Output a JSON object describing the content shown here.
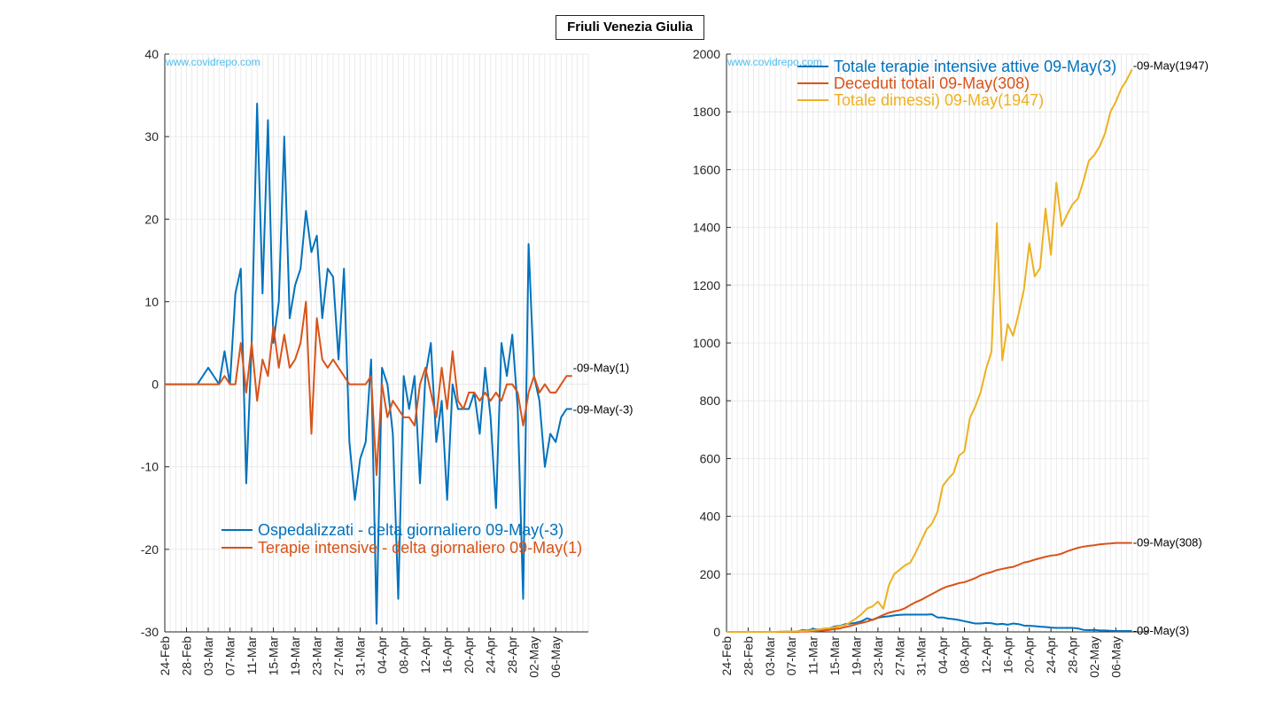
{
  "page_title": "Friuli Venezia Giulia",
  "watermark": "www.covidrepo.com",
  "colors": {
    "blue": "#0072BD",
    "orange": "#D95319",
    "yellow": "#EDB120",
    "grid": "#e6e6e6",
    "watermark": "#4DBEEE"
  },
  "chart_data": [
    {
      "type": "line",
      "x": [
        "24-Feb",
        "25-Feb",
        "26-Feb",
        "27-Feb",
        "28-Feb",
        "29-Feb",
        "01-Mar",
        "02-Mar",
        "03-Mar",
        "04-Mar",
        "05-Mar",
        "06-Mar",
        "07-Mar",
        "08-Mar",
        "09-Mar",
        "10-Mar",
        "11-Mar",
        "12-Mar",
        "13-Mar",
        "14-Mar",
        "15-Mar",
        "16-Mar",
        "17-Mar",
        "18-Mar",
        "19-Mar",
        "20-Mar",
        "21-Mar",
        "22-Mar",
        "23-Mar",
        "24-Mar",
        "25-Mar",
        "26-Mar",
        "27-Mar",
        "28-Mar",
        "29-Mar",
        "30-Mar",
        "31-Mar",
        "01-Apr",
        "02-Apr",
        "03-Apr",
        "04-Apr",
        "05-Apr",
        "06-Apr",
        "07-Apr",
        "08-Apr",
        "09-Apr",
        "10-Apr",
        "11-Apr",
        "12-Apr",
        "13-Apr",
        "14-Apr",
        "15-Apr",
        "16-Apr",
        "17-Apr",
        "18-Apr",
        "19-Apr",
        "20-Apr",
        "21-Apr",
        "22-Apr",
        "23-Apr",
        "24-Apr",
        "25-Apr",
        "26-Apr",
        "27-Apr",
        "28-Apr",
        "29-Apr",
        "30-Apr",
        "01-May",
        "02-May",
        "03-May",
        "04-May",
        "05-May",
        "06-May",
        "07-May",
        "08-May",
        "09-May"
      ],
      "xticks": [
        "24-Feb",
        "28-Feb",
        "03-Mar",
        "07-Mar",
        "11-Mar",
        "15-Mar",
        "19-Mar",
        "23-Mar",
        "27-Mar",
        "31-Mar",
        "04-Apr",
        "08-Apr",
        "12-Apr",
        "16-Apr",
        "20-Apr",
        "24-Apr",
        "28-Apr",
        "02-May",
        "06-May"
      ],
      "ylim": [
        -30,
        40
      ],
      "yticks": [
        -30,
        -20,
        -10,
        0,
        10,
        20,
        30,
        40
      ],
      "grid": true,
      "legend_position": "bottom",
      "series": [
        {
          "name": "Ospedalizzati - delta giornaliero 09-May(-3)",
          "color": "#0072BD",
          "end_label": "-09-May(-3)",
          "values": [
            0,
            0,
            0,
            0,
            0,
            0,
            0,
            1,
            2,
            1,
            0,
            4,
            0,
            11,
            14,
            -12,
            5,
            34,
            11,
            32,
            5,
            10,
            30,
            8,
            12,
            14,
            21,
            16,
            18,
            8,
            14,
            13,
            3,
            14,
            -7,
            -14,
            -9,
            -7,
            3,
            -29,
            2,
            0,
            -6,
            -26,
            1,
            -3,
            1,
            -12,
            1,
            5,
            -7,
            -2,
            -14,
            0,
            -3,
            -3,
            -3,
            -1,
            -6,
            2,
            -4,
            -15,
            5,
            1,
            6,
            -3,
            -26,
            17,
            1,
            -2,
            -10,
            -6,
            -7,
            -4,
            -3,
            -3
          ]
        },
        {
          "name": "Terapie intensive - delta giornaliero 09-May(1)",
          "color": "#D95319",
          "end_label": "-09-May(1)",
          "values": [
            0,
            0,
            0,
            0,
            0,
            0,
            0,
            0,
            0,
            0,
            0,
            1,
            0,
            0,
            5,
            -1,
            5,
            -2,
            3,
            1,
            7,
            2,
            6,
            2,
            3,
            5,
            10,
            -6,
            8,
            3,
            2,
            3,
            2,
            1,
            0,
            0,
            0,
            0,
            1,
            -11,
            0,
            -4,
            -2,
            -3,
            -4,
            -4,
            -5,
            0,
            2,
            -1,
            -4,
            2,
            -3,
            4,
            -2,
            -3,
            -1,
            -1,
            -2,
            -1,
            -2,
            -1,
            -2,
            0,
            0,
            -1,
            -5,
            -1,
            1,
            -1,
            0,
            -1,
            -1,
            0,
            1,
            1
          ]
        }
      ]
    },
    {
      "type": "line",
      "x": [
        "24-Feb",
        "25-Feb",
        "26-Feb",
        "27-Feb",
        "28-Feb",
        "29-Feb",
        "01-Mar",
        "02-Mar",
        "03-Mar",
        "04-Mar",
        "05-Mar",
        "06-Mar",
        "07-Mar",
        "08-Mar",
        "09-Mar",
        "10-Mar",
        "11-Mar",
        "12-Mar",
        "13-Mar",
        "14-Mar",
        "15-Mar",
        "16-Mar",
        "17-Mar",
        "18-Mar",
        "19-Mar",
        "20-Mar",
        "21-Mar",
        "22-Mar",
        "23-Mar",
        "24-Mar",
        "25-Mar",
        "26-Mar",
        "27-Mar",
        "28-Mar",
        "29-Mar",
        "30-Mar",
        "31-Mar",
        "01-Apr",
        "02-Apr",
        "03-Apr",
        "04-Apr",
        "05-Apr",
        "06-Apr",
        "07-Apr",
        "08-Apr",
        "09-Apr",
        "10-Apr",
        "11-Apr",
        "12-Apr",
        "13-Apr",
        "14-Apr",
        "15-Apr",
        "16-Apr",
        "17-Apr",
        "18-Apr",
        "19-Apr",
        "20-Apr",
        "21-Apr",
        "22-Apr",
        "23-Apr",
        "24-Apr",
        "25-Apr",
        "26-Apr",
        "27-Apr",
        "28-Apr",
        "29-Apr",
        "30-Apr",
        "01-May",
        "02-May",
        "03-May",
        "04-May",
        "05-May",
        "06-May",
        "07-May",
        "08-May",
        "09-May"
      ],
      "xticks": [
        "24-Feb",
        "28-Feb",
        "03-Mar",
        "07-Mar",
        "11-Mar",
        "15-Mar",
        "19-Mar",
        "23-Mar",
        "27-Mar",
        "31-Mar",
        "04-Apr",
        "08-Apr",
        "12-Apr",
        "16-Apr",
        "20-Apr",
        "24-Apr",
        "28-Apr",
        "02-May",
        "06-May"
      ],
      "ylim": [
        0,
        2000
      ],
      "yticks": [
        0,
        200,
        400,
        600,
        800,
        1000,
        1200,
        1400,
        1600,
        1800,
        2000
      ],
      "grid": true,
      "legend_position": "top",
      "series": [
        {
          "name": "Totale terapie intensive attive 09-May(3)",
          "color": "#0072BD",
          "end_label": "-09-May(3)",
          "values": [
            0,
            0,
            0,
            0,
            0,
            0,
            0,
            0,
            0,
            0,
            0,
            1,
            1,
            1,
            6,
            5,
            10,
            8,
            11,
            12,
            19,
            21,
            27,
            29,
            32,
            37,
            47,
            41,
            49,
            52,
            54,
            57,
            59,
            60,
            60,
            60,
            60,
            60,
            61,
            50,
            50,
            46,
            44,
            41,
            37,
            33,
            29,
            29,
            31,
            30,
            26,
            28,
            25,
            29,
            27,
            22,
            21,
            20,
            18,
            17,
            15,
            14,
            14,
            14,
            14,
            12,
            7,
            6,
            7,
            5,
            5,
            4,
            3,
            3,
            3,
            3
          ]
        },
        {
          "name": "Deceduti totali 09-May(308)",
          "color": "#D95319",
          "end_label": "-09-May(308)",
          "values": [
            0,
            0,
            0,
            0,
            0,
            0,
            0,
            0,
            0,
            0,
            0,
            0,
            0,
            0,
            1,
            1,
            2,
            4,
            5,
            7,
            10,
            12,
            17,
            21,
            27,
            31,
            36,
            42,
            50,
            59,
            66,
            71,
            75,
            82,
            93,
            103,
            111,
            121,
            131,
            141,
            151,
            158,
            163,
            169,
            172,
            179,
            186,
            196,
            202,
            207,
            214,
            218,
            222,
            225,
            232,
            240,
            244,
            250,
            255,
            260,
            264,
            266,
            271,
            279,
            285,
            291,
            295,
            298,
            300,
            303,
            305,
            306,
            308,
            308,
            308,
            308
          ]
        },
        {
          "name": "Totale dimessi) 09-May(1947)",
          "color": "#EDB120",
          "end_label": "-09-May(1947)",
          "values": [
            0,
            0,
            0,
            0,
            0,
            0,
            0,
            0,
            0,
            0,
            1,
            1,
            1,
            2,
            3,
            4,
            6,
            8,
            11,
            13,
            16,
            20,
            24,
            35,
            47,
            62,
            81,
            88,
            105,
            80,
            160,
            200,
            215,
            230,
            240,
            275,
            315,
            355,
            375,
            415,
            505,
            530,
            550,
            610,
            625,
            740,
            780,
            830,
            910,
            970,
            1415,
            940,
            1065,
            1025,
            1100,
            1185,
            1345,
            1230,
            1260,
            1465,
            1305,
            1555,
            1405,
            1445,
            1480,
            1500,
            1560,
            1630,
            1650,
            1680,
            1725,
            1800,
            1835,
            1880,
            1910,
            1947
          ]
        }
      ]
    }
  ]
}
